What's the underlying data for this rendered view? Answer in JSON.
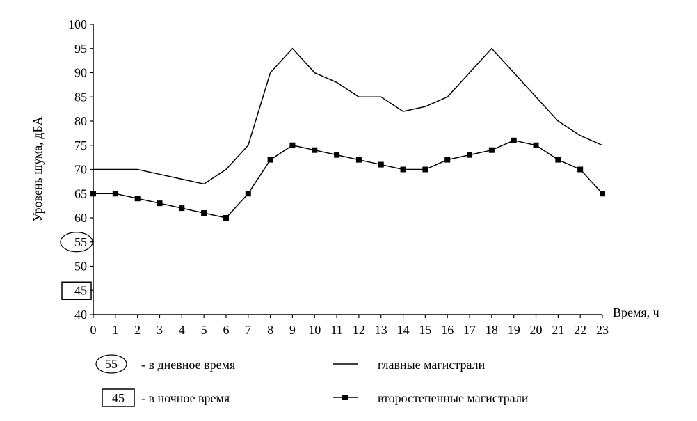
{
  "chart_data": {
    "type": "line",
    "xlabel": "Время, ч",
    "ylabel": "Уровень шума, дБА",
    "ylim": [
      40,
      100
    ],
    "xlim": [
      0,
      23
    ],
    "x": [
      0,
      1,
      2,
      3,
      4,
      5,
      6,
      7,
      8,
      9,
      10,
      11,
      12,
      13,
      14,
      15,
      16,
      17,
      18,
      19,
      20,
      21,
      22,
      23
    ],
    "y_ticks": [
      40,
      45,
      50,
      55,
      60,
      65,
      70,
      75,
      80,
      85,
      90,
      95,
      100
    ],
    "grid": false,
    "series": [
      {
        "name": "главные магистрали",
        "marker": "none",
        "values": [
          70,
          70,
          70,
          69,
          68,
          67,
          70,
          75,
          90,
          95,
          90,
          88,
          85,
          85,
          82,
          83,
          85,
          90,
          95,
          90,
          85,
          80,
          77,
          75
        ]
      },
      {
        "name": "второстепенные магистрали",
        "marker": "square",
        "values": [
          65,
          65,
          64,
          63,
          62,
          61,
          60,
          65,
          72,
          75,
          74,
          73,
          72,
          71,
          70,
          70,
          72,
          73,
          74,
          76,
          75,
          72,
          70,
          65
        ]
      }
    ],
    "annotations": [
      {
        "value": 55,
        "label": "55",
        "shape": "ellipse"
      },
      {
        "value": 45,
        "label": "45",
        "shape": "rectangle"
      }
    ],
    "legend": {
      "placement": "bottom",
      "items": [
        {
          "symbol": "ellipse",
          "symbol_text": "55",
          "text": "- в дневное время"
        },
        {
          "symbol": "rectangle",
          "symbol_text": "45",
          "text": "- в ночное время"
        },
        {
          "symbol": "line",
          "text": "главные магистрали"
        },
        {
          "symbol": "line-square",
          "text": "второстепенные магистрали"
        }
      ]
    }
  }
}
